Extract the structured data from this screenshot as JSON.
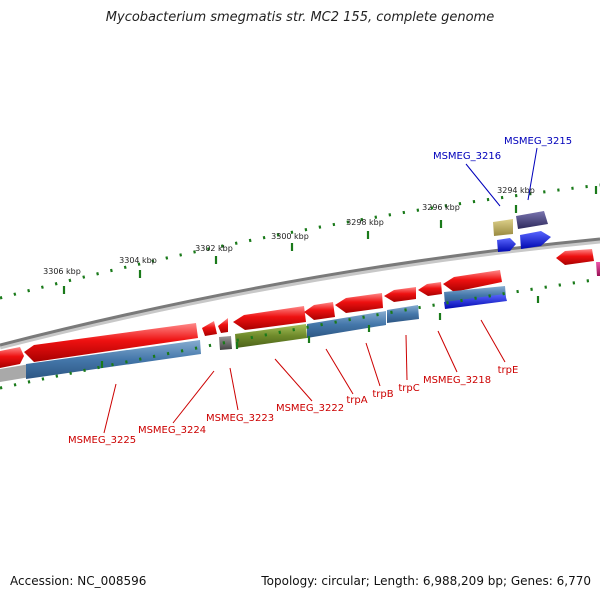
{
  "title": "Mycobacterium smegmatis str. MC2 155, complete genome",
  "accession_text": "Accession: NC_008596",
  "summary_text": "Topology: circular; Length: 6,988,209 bp; Genes: 6,770",
  "colors": {
    "backbone": "#888888",
    "tick": "#1a7a1a",
    "forward_gene": "#ee1111",
    "cds_reverse": "#4477aa",
    "label_red": "#cc0000",
    "label_blue": "#0000bb",
    "olive": "#6e8a2a",
    "gray_gene": "#555555",
    "khaki": "#bbaa55",
    "purple": "#44407a",
    "blue": "#0a14e6",
    "magenta": "#cc1177"
  },
  "scale_labels": [
    "3306 kbp",
    "3304 kbp",
    "3302 kbp",
    "3300 kbp",
    "3298 kbp",
    "3296 kbp",
    "3294 kbp"
  ],
  "genes_below": [
    "MSMEG_3225",
    "MSMEG_3224",
    "MSMEG_3223",
    "MSMEG_3222",
    "trpA",
    "trpB",
    "trpC",
    "MSMEG_3218",
    "trpE"
  ],
  "genes_above": [
    "MSMEG_3216",
    "MSMEG_3215"
  ]
}
